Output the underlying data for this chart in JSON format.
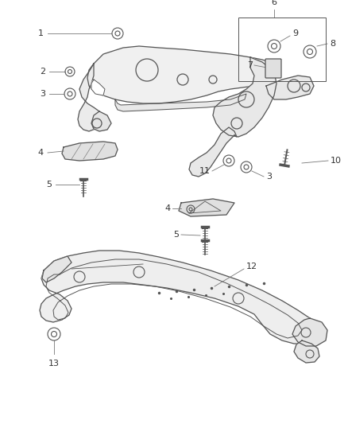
{
  "bg_color": "#ffffff",
  "line_color": "#555555",
  "label_color": "#333333",
  "fig_width": 4.38,
  "fig_height": 5.33,
  "dpi": 100
}
